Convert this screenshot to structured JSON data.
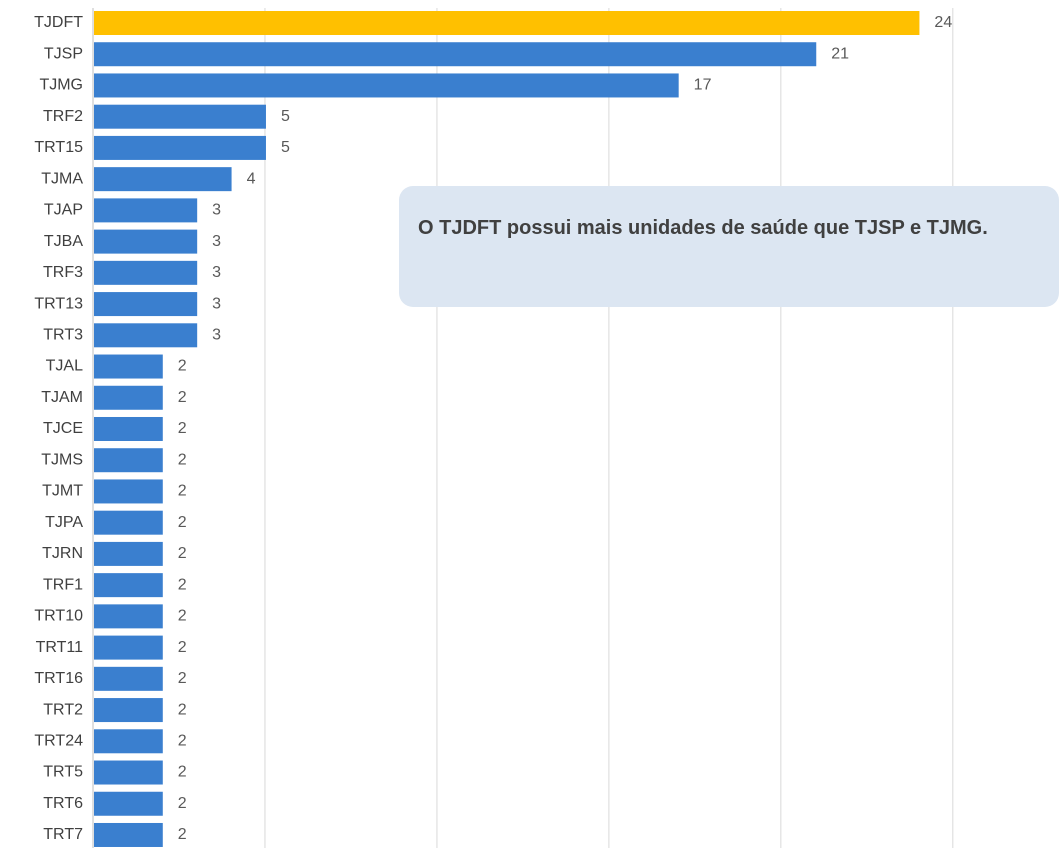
{
  "chart_data": {
    "type": "barh",
    "categories": [
      "TJDFT",
      "TJSP",
      "TJMG",
      "TRF2",
      "TRT15",
      "TJMA",
      "TJAP",
      "TJBA",
      "TRF3",
      "TRT13",
      "TRT3",
      "TJAL",
      "TJAM",
      "TJCE",
      "TJMS",
      "TJMT",
      "TJPA",
      "TJRN",
      "TRF1",
      "TRT10",
      "TRT11",
      "TRT16",
      "TRT2",
      "TRT24",
      "TRT5",
      "TRT6",
      "TRT7"
    ],
    "values": [
      24,
      21,
      17,
      5,
      5,
      4,
      3,
      3,
      3,
      3,
      3,
      2,
      2,
      2,
      2,
      2,
      2,
      2,
      2,
      2,
      2,
      2,
      2,
      2,
      2,
      2,
      2
    ],
    "colors": [
      "#ffc000",
      "#3a7fcf",
      "#3a7fcf",
      "#3a7fcf",
      "#3a7fcf",
      "#3a7fcf",
      "#3a7fcf",
      "#3a7fcf",
      "#3a7fcf",
      "#3a7fcf",
      "#3a7fcf",
      "#3a7fcf",
      "#3a7fcf",
      "#3a7fcf",
      "#3a7fcf",
      "#3a7fcf",
      "#3a7fcf",
      "#3a7fcf",
      "#3a7fcf",
      "#3a7fcf",
      "#3a7fcf",
      "#3a7fcf",
      "#3a7fcf",
      "#3a7fcf",
      "#3a7fcf",
      "#3a7fcf",
      "#3a7fcf"
    ],
    "xlim": [
      0,
      28
    ],
    "xticks": [
      0,
      5,
      10,
      15,
      20,
      25
    ],
    "grid": true,
    "annotation": "O TJDFT possui mais unidades de saúde que TJSP e TJMG."
  }
}
